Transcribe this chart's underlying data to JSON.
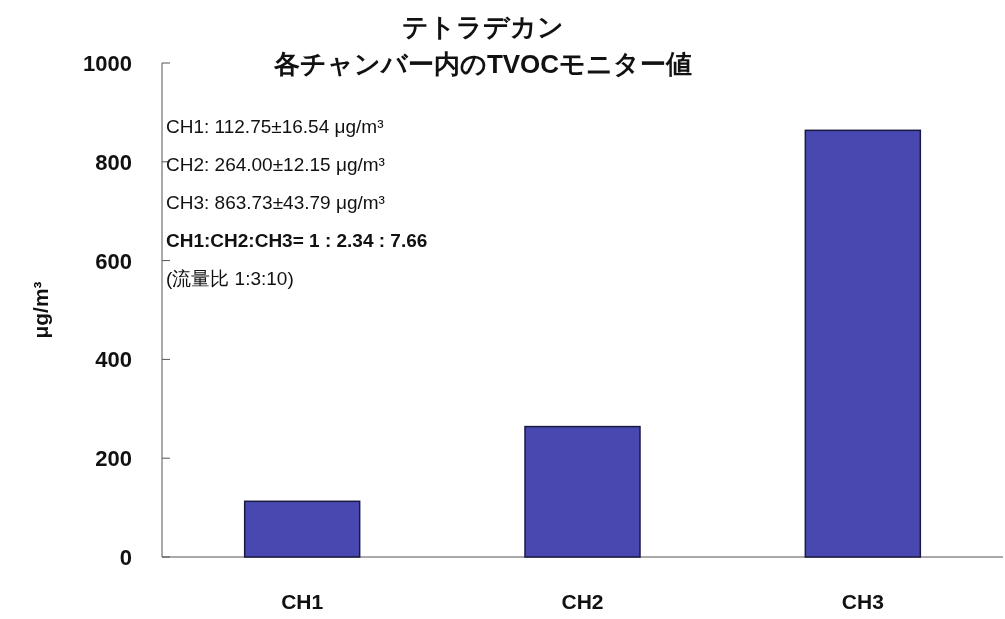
{
  "chart_data": {
    "type": "bar",
    "title": "テトラデカン",
    "subtitle": "各チャンバー内のTVOCモニター値",
    "ylabel": "μg/m³",
    "categories": [
      "CH1",
      "CH2",
      "CH3"
    ],
    "values": [
      112.75,
      264.0,
      863.73
    ],
    "color": "#4848b0",
    "ylim": [
      0,
      1000
    ],
    "yticks": [
      0,
      200,
      400,
      600,
      800,
      1000
    ],
    "grid": false,
    "annotations": [
      "CH1:  112.75±16.54 μg/m³",
      "CH2:  264.00±12.15 μg/m³",
      "CH3:  863.73±43.79 μg/m³",
      "CH1:CH2:CH3=  1  :  2.34 :  7.66",
      "(流量比 1:3:10)"
    ]
  }
}
